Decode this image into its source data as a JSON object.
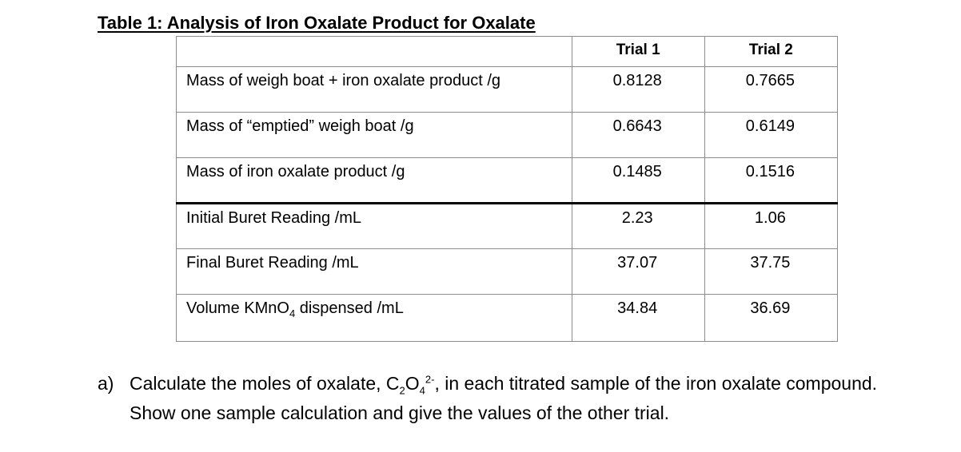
{
  "title": "Table 1: Analysis of Iron Oxalate Product for Oxalate",
  "table": {
    "headers": [
      "",
      "Trial 1",
      "Trial 2"
    ],
    "rows": [
      {
        "label": "Mass of weigh boat + iron oxalate product /g",
        "trial1": "0.8128",
        "trial2": "0.7665"
      },
      {
        "label": "Mass of “emptied” weigh boat /g",
        "trial1": "0.6643",
        "trial2": "0.6149"
      },
      {
        "label": "Mass of iron oxalate product /g",
        "trial1": "0.1485",
        "trial2": "0.1516"
      },
      {
        "label": "Initial Buret Reading /mL",
        "trial1": "2.23",
        "trial2": "1.06"
      },
      {
        "label": "Final Buret Reading /mL",
        "trial1": "37.07",
        "trial2": "37.75"
      },
      {
        "label_pre": "Volume KMnO",
        "label_sub": "4",
        "label_post": " dispensed /mL",
        "trial1": "34.84",
        "trial2": "36.69"
      }
    ]
  },
  "question": {
    "marker": "a)",
    "text_pre": "Calculate the moles of oxalate, C",
    "sub1": "2",
    "mid1": "O",
    "sub2": "4",
    "sup1": "2-",
    "text_post": ", in each titrated sample of the iron oxalate compound.  Show one sample calculation and give the values of the other trial."
  }
}
